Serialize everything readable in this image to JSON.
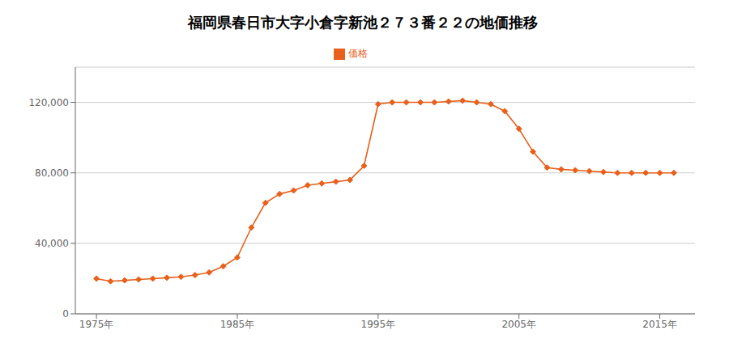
{
  "chart_data": {
    "type": "line",
    "title": "福岡県春日市大字小倉字新池２７３番２２の地価推移",
    "x": [
      1975,
      1976,
      1977,
      1978,
      1979,
      1980,
      1981,
      1982,
      1983,
      1984,
      1985,
      1986,
      1987,
      1988,
      1989,
      1990,
      1991,
      1992,
      1993,
      1994,
      1995,
      1996,
      1997,
      1998,
      1999,
      2000,
      2001,
      2002,
      2003,
      2004,
      2005,
      2006,
      2007,
      2008,
      2009,
      2010,
      2011,
      2012,
      2013,
      2014,
      2015,
      2016
    ],
    "series": [
      {
        "name": "価格",
        "color": "#E8601C",
        "marker": "diamond",
        "values": [
          20000,
          18500,
          19000,
          19500,
          20000,
          20500,
          21000,
          22000,
          23500,
          27000,
          32000,
          49000,
          63000,
          68000,
          70000,
          73000,
          74000,
          75000,
          76000,
          84000,
          119000,
          120000,
          120000,
          120000,
          120000,
          120500,
          121000,
          120000,
          119000,
          115000,
          105000,
          92000,
          83000,
          82000,
          81500,
          81000,
          80500,
          80000,
          80000,
          80000,
          80000,
          80000
        ]
      }
    ],
    "xlim": [
      1973.5,
      2017.5
    ],
    "xticks": [
      {
        "value": 1975,
        "label": "1975年"
      },
      {
        "value": 1985,
        "label": "1985年"
      },
      {
        "value": 1995,
        "label": "1995年"
      },
      {
        "value": 2005,
        "label": "2005年"
      },
      {
        "value": 2015,
        "label": "2015年"
      }
    ],
    "ylim": [
      0,
      140000
    ],
    "yticks": [
      0,
      {
        "value": 40000,
        "label": "40,000"
      },
      {
        "value": 80000,
        "label": "80,000"
      },
      {
        "value": 120000,
        "label": "120,000"
      }
    ],
    "grid": true,
    "legend": "top"
  }
}
